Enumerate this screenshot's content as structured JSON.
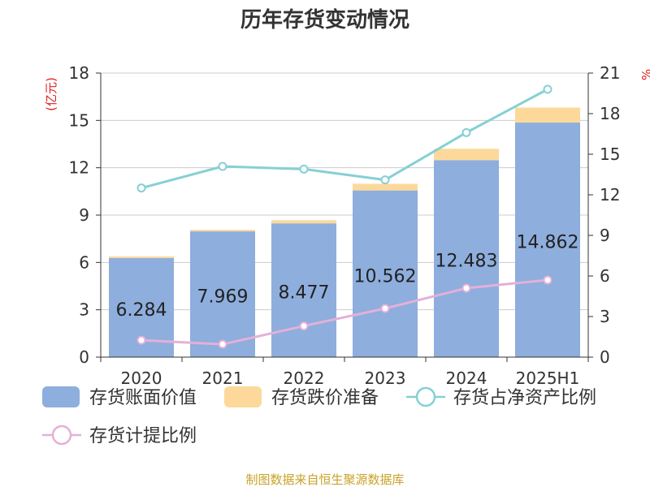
{
  "title": "历年存货变动情况",
  "source": "制图数据来自恒生聚源数据库",
  "left_axis_unit": "(亿元)",
  "right_axis_unit": "%",
  "colors": {
    "book_value": "#8eaedd",
    "impairment": "#fcd99a",
    "net_asset_ratio": "#86d0d4",
    "provision_ratio": "#e4b0d8",
    "axis": "#333333",
    "grid": "#cccccc",
    "unit": "#e02020",
    "source": "#c9a227"
  },
  "chart_data": {
    "type": "bar",
    "title": "历年存货变动情况",
    "categories": [
      "2020",
      "2021",
      "2022",
      "2023",
      "2024",
      "2025H1"
    ],
    "left_axis": {
      "unit": "(亿元)",
      "ylim": [
        0,
        18
      ],
      "ticks": [
        "0",
        "3",
        "6",
        "9",
        "12",
        "15",
        "18"
      ]
    },
    "right_axis": {
      "unit": "%",
      "ylim": [
        0,
        21
      ],
      "ticks": [
        "0",
        "3",
        "6",
        "9",
        "12",
        "15",
        "18",
        "21"
      ]
    },
    "grid": true,
    "legend_position": "bottom",
    "series": [
      {
        "name": "存货账面价值",
        "kind": "bar",
        "axis": "left",
        "stack": "inventory",
        "values": [
          6.284,
          7.969,
          8.477,
          10.562,
          12.483,
          14.862
        ],
        "labels": [
          "6.284",
          "7.969",
          "8.477",
          "10.562",
          "12.483",
          "14.862"
        ]
      },
      {
        "name": "存货跌价准备",
        "kind": "bar",
        "axis": "left",
        "stack": "inventory",
        "values": [
          0.1,
          0.1,
          0.2,
          0.42,
          0.72,
          0.95
        ]
      },
      {
        "name": "存货占净资产比例",
        "kind": "line",
        "axis": "right",
        "values": [
          12.5,
          14.1,
          13.9,
          13.1,
          16.6,
          19.8
        ]
      },
      {
        "name": "存货计提比例",
        "kind": "line",
        "axis": "right",
        "values": [
          1.25,
          0.95,
          2.3,
          3.6,
          5.1,
          5.7
        ]
      }
    ]
  }
}
